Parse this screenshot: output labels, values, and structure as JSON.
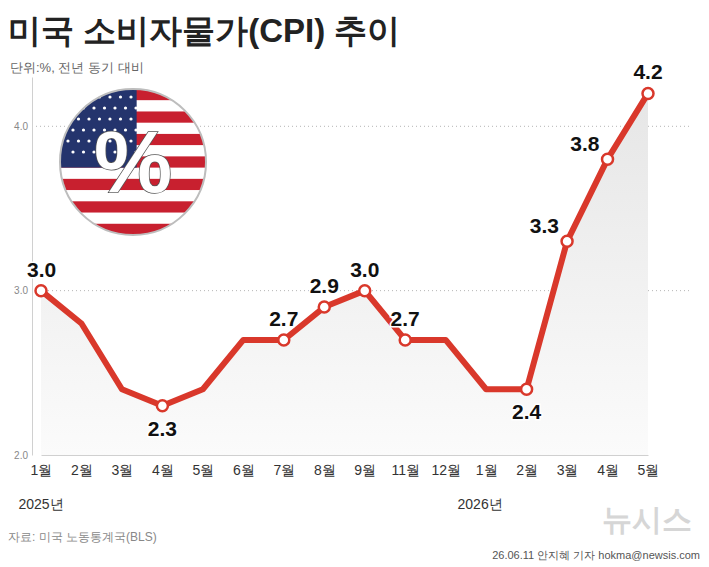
{
  "chart_data": {
    "type": "line",
    "title": "미국 소비자물가(CPI) 추이",
    "subtitle": "단위:%, 전년 동기 대비",
    "source": "자료: 미국 노동통계국(BLS)",
    "credit": "26.06.11 안지혜 기자 hokma@newsis.com",
    "logo": "뉴시스",
    "badge": "%",
    "categories": [
      "1월",
      "2월",
      "3월",
      "4월",
      "5월",
      "6월",
      "7월",
      "8월",
      "9월",
      "11월",
      "12월",
      "1월",
      "2월",
      "3월",
      "4월",
      "5월"
    ],
    "annotations": [
      {
        "text": "2025년",
        "category": 0
      },
      {
        "text": "2026년",
        "category": 11
      }
    ],
    "values": [
      3.0,
      2.8,
      2.4,
      2.3,
      2.4,
      2.7,
      2.7,
      2.9,
      3.0,
      2.7,
      2.7,
      2.4,
      2.4,
      3.3,
      3.8,
      4.2
    ],
    "value_labels": [
      "3.0",
      null,
      null,
      "2.3",
      null,
      null,
      "2.7",
      "2.9",
      "3.0",
      "2.7",
      null,
      null,
      "2.4",
      "3.3",
      "3.8",
      "4.2"
    ],
    "color": "#d9382b",
    "marker": "circle",
    "data_labels": true,
    "grid": true,
    "ylim": [
      2.0,
      4.3
    ],
    "yticks": [
      {
        "value": 2.0,
        "label": "2.0"
      },
      {
        "value": 3.0,
        "label": "3.0"
      },
      {
        "value": 4.0,
        "label": "4.0"
      }
    ]
  }
}
